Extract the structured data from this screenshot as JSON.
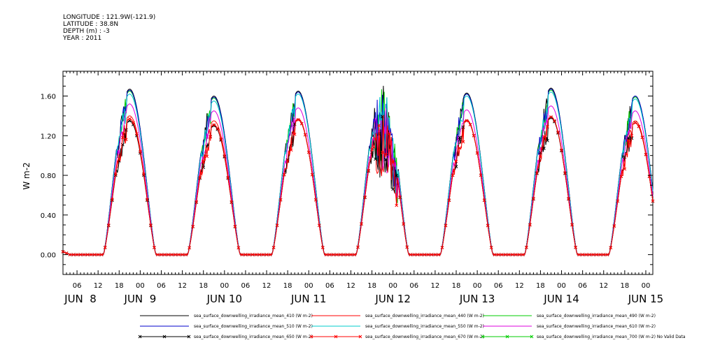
{
  "header": {
    "lines": [
      "LONGITUDE : 121.9W(-121.9)",
      "LATITUDE : 38.8N",
      "DEPTH (m) : -3",
      "YEAR : 2011"
    ]
  },
  "chart_data": {
    "type": "line",
    "ylabel": "W m-2",
    "ylim": [
      -0.2,
      1.85
    ],
    "yticks": [
      "0.00",
      "0.40",
      "0.80",
      "1.20",
      "1.60"
    ],
    "ytick_values": [
      0,
      0.4,
      0.8,
      1.2,
      1.6
    ],
    "x_hour_ticks": [
      "06",
      "12",
      "18",
      "00",
      "06",
      "12",
      "18",
      "00",
      "06",
      "12",
      "18",
      "00",
      "06",
      "12",
      "18",
      "00",
      "06",
      "12",
      "18",
      "00",
      "06",
      "12",
      "18",
      "00",
      "06",
      "12",
      "18",
      "00"
    ],
    "x_day_labels": [
      "JUN  8",
      "JUN  9",
      "JUN 10",
      "JUN 11",
      "JUN 12",
      "JUN 13",
      "JUN 14",
      "JUN 15"
    ],
    "grid": false,
    "legend_placement": "bottom",
    "series": [
      {
        "name": "sea_surface_downwelling_irradiance_mean_410 (W m-2)",
        "color": "#000000",
        "marker": "none",
        "peaks": [
          1.67,
          1.6,
          1.65,
          1.72,
          1.63,
          1.68,
          1.6
        ]
      },
      {
        "name": "sea_surface_downwelling_irradiance_mean_440 (W m-2)",
        "color": "#ff0000",
        "marker": "none",
        "peaks": [
          1.4,
          1.35,
          1.37,
          1.45,
          1.36,
          1.39,
          1.35
        ]
      },
      {
        "name": "sea_surface_downwelling_irradiance_mean_490 (W m-2)",
        "color": "#00cc00",
        "marker": "none",
        "peaks": [
          1.65,
          1.58,
          1.64,
          1.7,
          1.62,
          1.66,
          1.59
        ]
      },
      {
        "name": "sea_surface_downwelling_irradiance_mean_510 (W m-2)",
        "color": "#0000cc",
        "marker": "none",
        "peaks": [
          1.66,
          1.59,
          1.64,
          1.7,
          1.62,
          1.67,
          1.6
        ]
      },
      {
        "name": "sea_surface_downwelling_irradiance_mean_550 (W m-2)",
        "color": "#00cccc",
        "marker": "none",
        "peaks": [
          1.62,
          1.55,
          1.62,
          1.68,
          1.6,
          1.64,
          1.57
        ]
      },
      {
        "name": "sea_surface_downwelling_irradiance_mean_610 (W m-2)",
        "color": "#dd00dd",
        "marker": "none",
        "peaks": [
          1.52,
          1.45,
          1.48,
          1.55,
          1.46,
          1.5,
          1.45
        ]
      },
      {
        "name": "sea_surface_downwelling_irradiance_mean_650 (W m-2)",
        "color": "#000000",
        "marker": "x",
        "peaks": [
          1.35,
          1.3,
          1.36,
          1.42,
          1.35,
          1.38,
          1.33
        ]
      },
      {
        "name": "sea_surface_downwelling_irradiance_mean_670 (W m-2)",
        "color": "#ff0000",
        "marker": "x",
        "peaks": [
          1.37,
          1.31,
          1.36,
          1.43,
          1.35,
          1.39,
          1.33
        ]
      },
      {
        "name": "sea_surface_downwelling_irradiance_mean_700 (W m-2) No Valid Data",
        "color": "#00cc00",
        "marker": "x",
        "peaks": []
      }
    ]
  }
}
